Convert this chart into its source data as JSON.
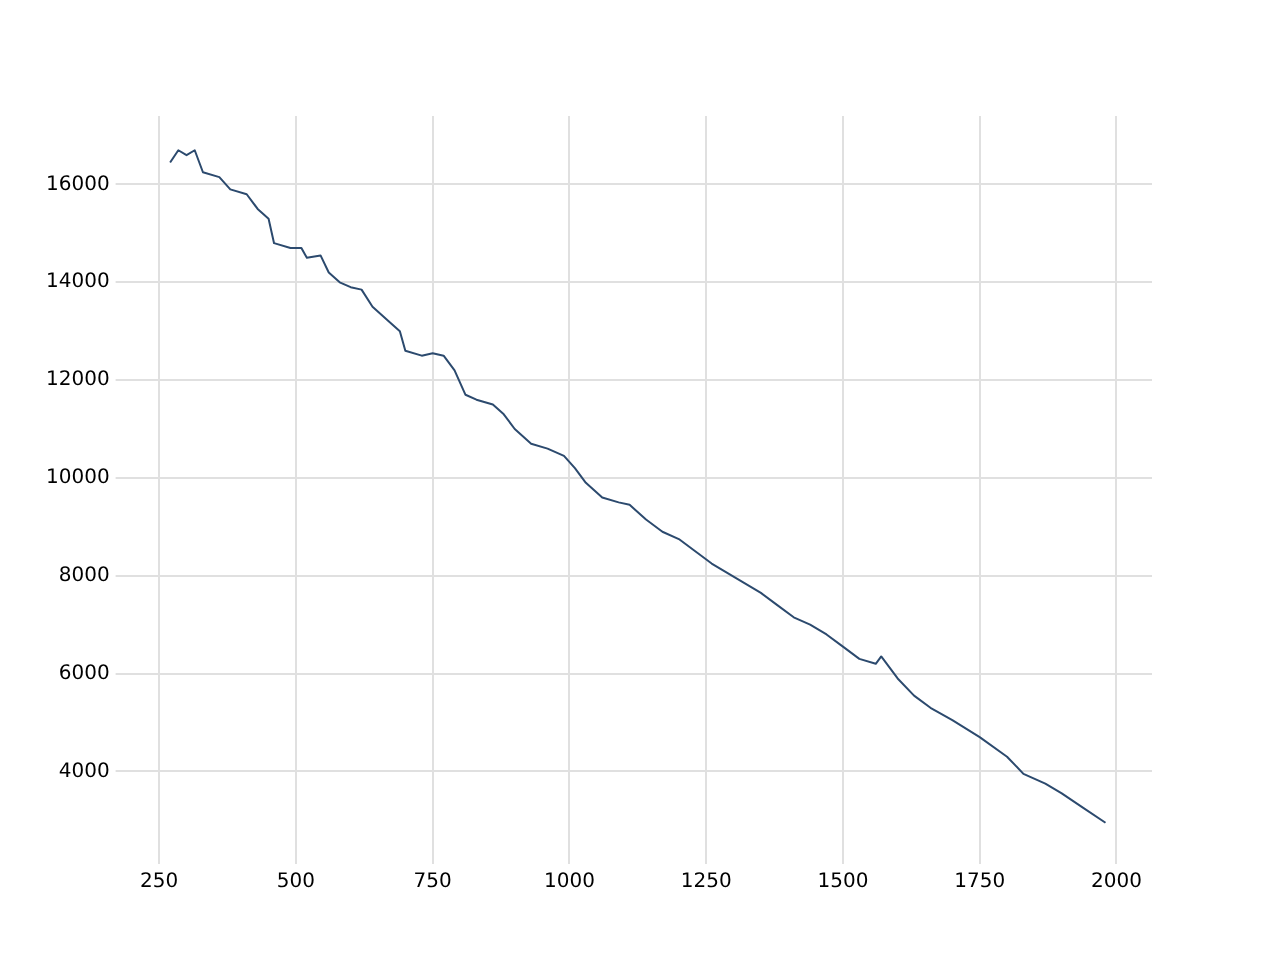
{
  "chart_data": {
    "type": "line",
    "x": [
      270,
      285,
      300,
      315,
      330,
      360,
      380,
      410,
      430,
      450,
      460,
      490,
      510,
      520,
      545,
      560,
      580,
      600,
      620,
      640,
      670,
      690,
      700,
      730,
      750,
      770,
      790,
      810,
      830,
      860,
      880,
      900,
      930,
      960,
      990,
      1010,
      1030,
      1060,
      1090,
      1110,
      1140,
      1170,
      1200,
      1230,
      1260,
      1290,
      1320,
      1350,
      1380,
      1410,
      1440,
      1470,
      1500,
      1530,
      1560,
      1570,
      1600,
      1630,
      1660,
      1700,
      1750,
      1800,
      1830,
      1870,
      1900,
      1940,
      1980
    ],
    "series": [
      {
        "color": "#2c4a6e",
        "values": [
          16450,
          16700,
          16600,
          16700,
          16250,
          16150,
          15900,
          15800,
          15500,
          15300,
          14800,
          14700,
          14700,
          14500,
          14550,
          14200,
          14000,
          13900,
          13850,
          13500,
          13200,
          13000,
          12600,
          12500,
          12550,
          12500,
          12200,
          11700,
          11600,
          11500,
          11300,
          11000,
          10700,
          10600,
          10450,
          10200,
          9900,
          9600,
          9500,
          9450,
          9150,
          8900,
          8750,
          8500,
          8250,
          8050,
          7850,
          7650,
          7400,
          7150,
          7000,
          6800,
          6550,
          6300,
          6200,
          6350,
          5900,
          5550,
          5300,
          5050,
          4700,
          4300,
          3950,
          3750,
          3550,
          3250,
          2950
        ]
      }
    ],
    "xlim": [
      185,
      2065
    ],
    "ylim": [
      2270,
      17400
    ],
    "xticks": [
      250,
      500,
      750,
      1000,
      1250,
      1500,
      1750,
      2000
    ],
    "yticks": [
      4000,
      6000,
      8000,
      10000,
      12000,
      14000,
      16000
    ],
    "grid": true,
    "marker": "none",
    "line_style": "solid",
    "legend": false
  }
}
